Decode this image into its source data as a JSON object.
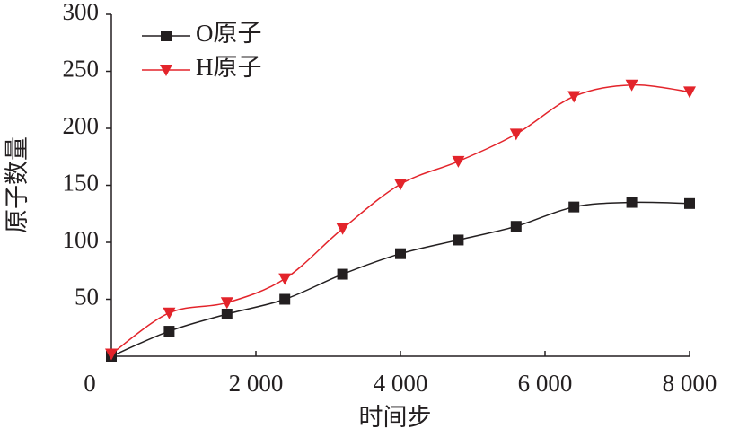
{
  "chart_data": {
    "type": "line",
    "x_label": "时间步",
    "y_label": "原子数量",
    "x": [
      0,
      800,
      1600,
      2400,
      3200,
      4000,
      4800,
      5600,
      6400,
      7200,
      8000
    ],
    "series": [
      {
        "name": "O原子",
        "color": "#231f20",
        "marker": "square",
        "values": [
          0,
          22,
          37,
          50,
          72,
          90,
          102,
          114,
          131,
          135,
          134
        ]
      },
      {
        "name": "H原子",
        "color": "#e3242b",
        "marker": "triangle-down",
        "values": [
          2,
          38,
          47,
          68,
          112,
          151,
          171,
          195,
          228,
          238,
          232
        ]
      }
    ],
    "xlim": [
      0,
      8000
    ],
    "ylim": [
      0,
      300
    ],
    "xticks": [
      0,
      {
        "value": 2000,
        "label": "2 000"
      },
      {
        "value": 4000,
        "label": "4 000"
      },
      {
        "value": 6000,
        "label": "6 000"
      },
      {
        "value": 8000,
        "label": "8 000"
      }
    ],
    "yticks": [
      50,
      100,
      150,
      200,
      250,
      300
    ],
    "legend": "upper-left"
  }
}
